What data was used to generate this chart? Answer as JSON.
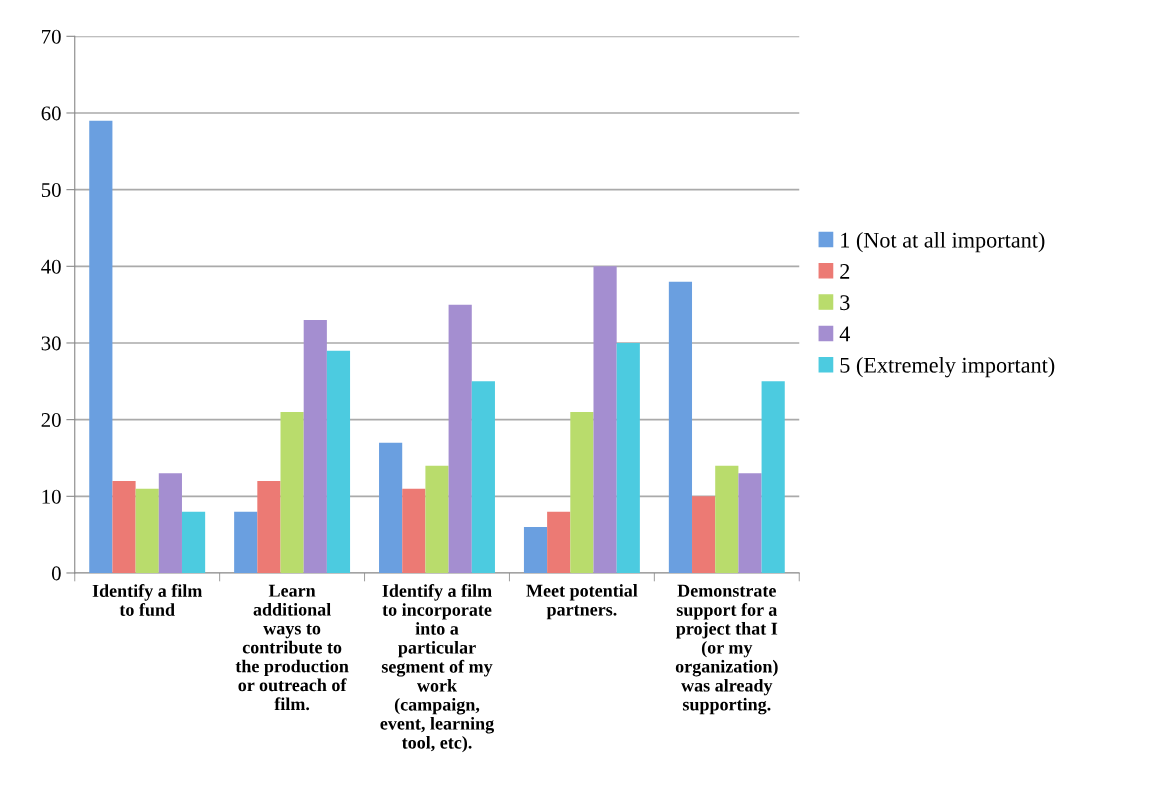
{
  "chart_data": {
    "type": "bar",
    "categories": [
      "Identify a film\nto fund",
      "Learn\nadditional\nways to\ncontribute to\nthe production\nor outreach of\nfilm.",
      "Identify a film\nto incorporate\ninto a\nparticular\nsegment of my\nwork\n(campaign,\nevent, learning\ntool, etc).",
      "Meet potential\npartners.",
      "Demonstrate\nsupport for a\nproject that I\n(or my\norganization)\nwas already\nsupporting."
    ],
    "series": [
      {
        "name": "1 (Not at all important)",
        "color": "#6a9fe0",
        "values": [
          59,
          8,
          17,
          6,
          38
        ]
      },
      {
        "name": "2",
        "color": "#ec7a74",
        "values": [
          12,
          12,
          11,
          8,
          10
        ]
      },
      {
        "name": "3",
        "color": "#b9dc6c",
        "values": [
          11,
          21,
          14,
          21,
          14
        ]
      },
      {
        "name": "4",
        "color": "#a48ed0",
        "values": [
          13,
          33,
          35,
          40,
          13
        ]
      },
      {
        "name": "5 (Extremely important)",
        "color": "#4ccbe0",
        "values": [
          8,
          29,
          25,
          30,
          25
        ]
      }
    ],
    "ylim": [
      0,
      70
    ],
    "yticks": [
      0,
      10,
      20,
      30,
      40,
      50,
      60,
      70
    ],
    "grid": "y",
    "legend": "right"
  }
}
